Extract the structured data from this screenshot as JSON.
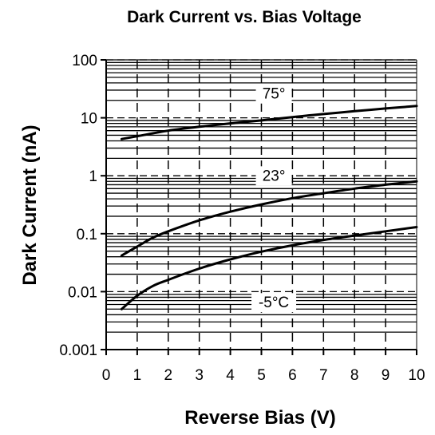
{
  "chart_data": {
    "type": "line",
    "title": "Dark Current vs. Bias Voltage",
    "xlabel": "Reverse Bias (V)",
    "ylabel": "Dark Current (nA)",
    "xlim": [
      0,
      10
    ],
    "ylim": [
      0.001,
      100
    ],
    "y_scale": "log",
    "grid": true,
    "x_ticks": [
      0,
      1,
      2,
      3,
      4,
      5,
      6,
      7,
      8,
      9,
      10
    ],
    "x_tick_labels": [
      "0",
      "1",
      "2",
      "3",
      "4",
      "5",
      "6",
      "7",
      "8",
      "9",
      "10"
    ],
    "y_ticks": [
      0.001,
      0.01,
      0.1,
      1,
      10,
      100
    ],
    "y_tick_labels": [
      "0.001",
      "0.01",
      "0.1",
      "1",
      "10",
      "100"
    ],
    "series": [
      {
        "name": "75°",
        "color": "#000000",
        "x": [
          0.5,
          1,
          2,
          3,
          4,
          5,
          6,
          7,
          8,
          9,
          10
        ],
        "y": [
          4.3,
          4.8,
          6.0,
          7.0,
          8.0,
          9.0,
          10.3,
          11.6,
          13.0,
          14.5,
          16.0
        ]
      },
      {
        "name": "23°",
        "color": "#000000",
        "x": [
          0.5,
          1,
          1.5,
          2,
          3,
          4,
          5,
          6,
          7,
          8,
          9,
          10
        ],
        "y": [
          0.042,
          0.06,
          0.085,
          0.11,
          0.17,
          0.24,
          0.32,
          0.41,
          0.5,
          0.6,
          0.7,
          0.8
        ]
      },
      {
        "name": "-5°C",
        "color": "#000000",
        "x": [
          0.5,
          1,
          1.5,
          2,
          3,
          4,
          5,
          6,
          7,
          8,
          9,
          10
        ],
        "y": [
          0.005,
          0.0085,
          0.0125,
          0.016,
          0.025,
          0.036,
          0.049,
          0.063,
          0.078,
          0.093,
          0.11,
          0.13
        ]
      }
    ],
    "annotations": [
      {
        "text": "75°",
        "x": 5.4,
        "y": 22
      },
      {
        "text": "23°",
        "x": 5.4,
        "y": 0.85
      },
      {
        "text": "-5°C",
        "x": 5.4,
        "y": 0.0055
      }
    ]
  }
}
